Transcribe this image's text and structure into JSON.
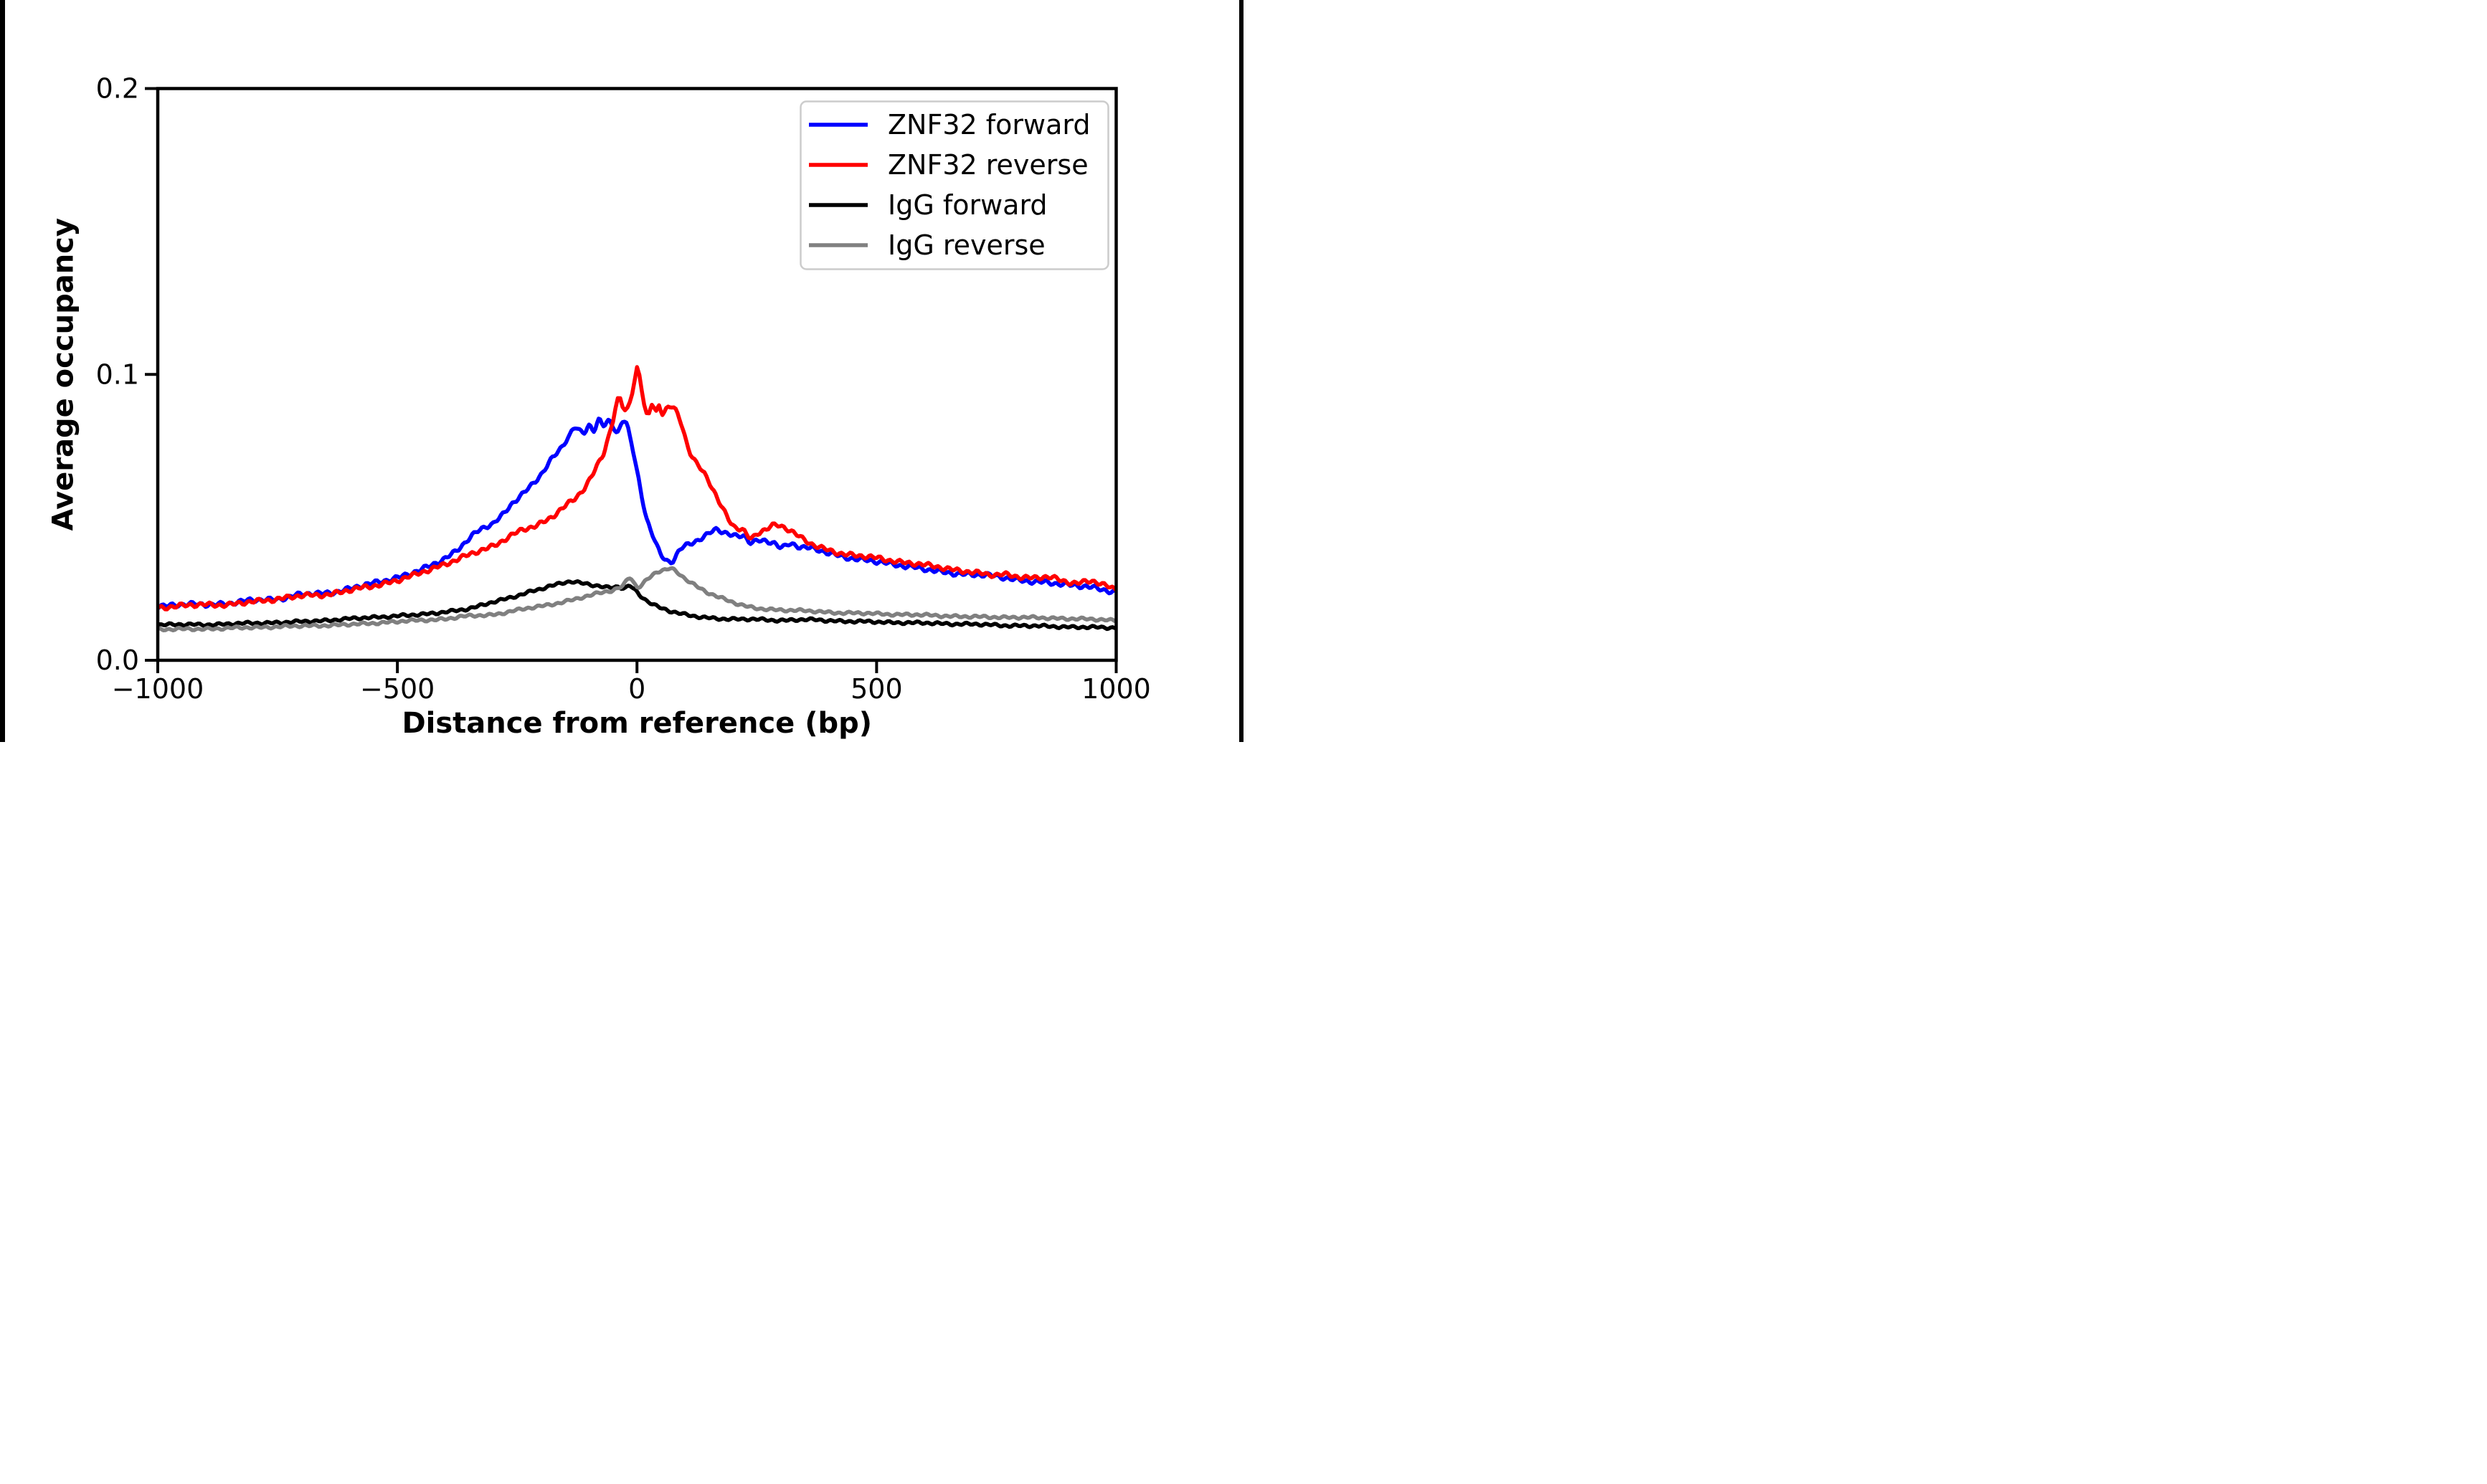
{
  "figure": {
    "background": "#ffffff",
    "edge_border_color": "#000000"
  },
  "chart_data": {
    "type": "line",
    "title": "",
    "xlabel": "Distance from reference (bp)",
    "ylabel": "Average occupancy",
    "xlim": [
      -1000,
      1000
    ],
    "ylim": [
      0,
      0.2
    ],
    "grid": false,
    "xticks": [
      {
        "value": -1000,
        "label": "−1000"
      },
      {
        "value": -500,
        "label": "−500"
      },
      {
        "value": 0,
        "label": "0"
      },
      {
        "value": 500,
        "label": "500"
      },
      {
        "value": 1000,
        "label": "1000"
      }
    ],
    "yticks": [
      {
        "value": 0.0,
        "label": "0.0"
      },
      {
        "value": 0.1,
        "label": "0.1"
      },
      {
        "value": 0.2,
        "label": "0.2"
      }
    ],
    "legend": {
      "position": "upper right",
      "frame_color": "#cccccc",
      "background": "#ffffff"
    },
    "series": [
      {
        "name": "ZNF32 forward",
        "color": "#0000ff",
        "x": [
          -1000,
          -950,
          -900,
          -850,
          -800,
          -750,
          -700,
          -650,
          -600,
          -550,
          -500,
          -460,
          -420,
          -380,
          -340,
          -300,
          -280,
          -260,
          -240,
          -220,
          -200,
          -180,
          -160,
          -140,
          -130,
          -120,
          -110,
          -100,
          -90,
          -80,
          -70,
          -60,
          -50,
          -40,
          -30,
          -22,
          -15,
          -8,
          0,
          10,
          20,
          33,
          45,
          55,
          62,
          75,
          90,
          107,
          127,
          145,
          165,
          180,
          195,
          210,
          222,
          237,
          252,
          270,
          287,
          302,
          320,
          340,
          360,
          380,
          400,
          430,
          460,
          500,
          540,
          580,
          620,
          660,
          700,
          740,
          780,
          820,
          860,
          900,
          940,
          970,
          1000
        ],
        "y": [
          0.019,
          0.0195,
          0.0195,
          0.02,
          0.021,
          0.0215,
          0.023,
          0.0235,
          0.025,
          0.027,
          0.029,
          0.031,
          0.034,
          0.038,
          0.044,
          0.048,
          0.051,
          0.055,
          0.058,
          0.061,
          0.065,
          0.07,
          0.074,
          0.079,
          0.0815,
          0.08,
          0.0795,
          0.082,
          0.0805,
          0.084,
          0.082,
          0.0835,
          0.082,
          0.08,
          0.084,
          0.083,
          0.078,
          0.073,
          0.066,
          0.0575,
          0.0495,
          0.0435,
          0.0385,
          0.036,
          0.035,
          0.035,
          0.0388,
          0.0406,
          0.0419,
          0.0435,
          0.0458,
          0.045,
          0.044,
          0.0434,
          0.0437,
          0.0413,
          0.0416,
          0.0414,
          0.0411,
          0.0395,
          0.0408,
          0.0398,
          0.0392,
          0.0383,
          0.0375,
          0.0363,
          0.0354,
          0.0344,
          0.0335,
          0.0325,
          0.0312,
          0.0305,
          0.03,
          0.0295,
          0.0286,
          0.0276,
          0.027,
          0.0265,
          0.0258,
          0.0246,
          0.0238
        ]
      },
      {
        "name": "ZNF32 reverse",
        "color": "#ff0000",
        "x": [
          -1000,
          -950,
          -900,
          -850,
          -800,
          -750,
          -700,
          -650,
          -600,
          -550,
          -500,
          -460,
          -420,
          -380,
          -340,
          -300,
          -270,
          -240,
          -210,
          -180,
          -150,
          -130,
          -110,
          -95,
          -80,
          -70,
          -60,
          -50,
          -45,
          -40,
          -35,
          -30,
          -25,
          -20,
          -15,
          -10,
          -5,
          0,
          5,
          10,
          15,
          20,
          25,
          31,
          40,
          46,
          53,
          65,
          77,
          92,
          107,
          120,
          132,
          145,
          160,
          175,
          187,
          200,
          210,
          220,
          237,
          252,
          270,
          287,
          302,
          315,
          330,
          345,
          365,
          385,
          400,
          430,
          460,
          500,
          540,
          580,
          620,
          660,
          700,
          740,
          770,
          800,
          830,
          860,
          890,
          920,
          950,
          975,
          1000
        ],
        "y": [
          0.0185,
          0.019,
          0.0195,
          0.0195,
          0.0205,
          0.0215,
          0.0225,
          0.023,
          0.0245,
          0.026,
          0.028,
          0.03,
          0.0325,
          0.035,
          0.0375,
          0.04,
          0.043,
          0.0455,
          0.047,
          0.05,
          0.054,
          0.0565,
          0.06,
          0.064,
          0.069,
          0.0725,
          0.078,
          0.084,
          0.088,
          0.091,
          0.0915,
          0.089,
          0.0875,
          0.088,
          0.0905,
          0.094,
          0.098,
          0.102,
          0.0995,
          0.0945,
          0.089,
          0.0855,
          0.086,
          0.0899,
          0.087,
          0.0895,
          0.0864,
          0.0884,
          0.0883,
          0.0834,
          0.0742,
          0.0696,
          0.0671,
          0.0642,
          0.0592,
          0.0542,
          0.0508,
          0.0475,
          0.0463,
          0.0456,
          0.0425,
          0.0444,
          0.0458,
          0.0473,
          0.047,
          0.046,
          0.0443,
          0.0425,
          0.0405,
          0.0392,
          0.0385,
          0.0373,
          0.0366,
          0.0357,
          0.0347,
          0.0338,
          0.0328,
          0.0318,
          0.0308,
          0.0298,
          0.0301,
          0.0292,
          0.0287,
          0.0291,
          0.0278,
          0.0271,
          0.0276,
          0.0262,
          0.0248
        ]
      },
      {
        "name": "IgG forward",
        "color": "#000000",
        "x": [
          -1000,
          -900,
          -800,
          -700,
          -600,
          -500,
          -450,
          -400,
          -350,
          -300,
          -250,
          -200,
          -170,
          -140,
          -120,
          -100,
          -80,
          -60,
          -40,
          -25,
          -15,
          -5,
          5,
          20,
          40,
          60,
          80,
          100,
          125,
          150,
          175,
          207,
          242,
          300,
          350,
          400,
          450,
          500,
          550,
          600,
          650,
          700,
          750,
          800,
          850,
          900,
          950,
          1000
        ],
        "y": [
          0.0125,
          0.0125,
          0.013,
          0.0135,
          0.0145,
          0.0155,
          0.016,
          0.017,
          0.018,
          0.0205,
          0.0225,
          0.025,
          0.0265,
          0.0275,
          0.027,
          0.0265,
          0.026,
          0.0255,
          0.0258,
          0.0252,
          0.026,
          0.0245,
          0.0228,
          0.0208,
          0.019,
          0.0178,
          0.0168,
          0.016,
          0.0152,
          0.0148,
          0.0146,
          0.0144,
          0.0143,
          0.014,
          0.0142,
          0.0139,
          0.0136,
          0.0134,
          0.0132,
          0.013,
          0.0128,
          0.0126,
          0.0123,
          0.0121,
          0.0119,
          0.0117,
          0.0115,
          0.0114
        ]
      },
      {
        "name": "IgG reverse",
        "color": "#808080",
        "x": [
          -1000,
          -900,
          -800,
          -700,
          -600,
          -500,
          -450,
          -400,
          -350,
          -300,
          -250,
          -200,
          -150,
          -100,
          -70,
          -50,
          -30,
          -15,
          -8,
          0,
          10,
          20,
          30,
          40,
          50,
          62,
          70,
          80,
          90,
          100,
          115,
          132,
          150,
          170,
          207,
          242,
          282,
          320,
          360,
          400,
          450,
          500,
          550,
          600,
          650,
          700,
          750,
          800,
          850,
          900,
          950,
          1000
        ],
        "y": [
          0.0108,
          0.011,
          0.0115,
          0.012,
          0.0125,
          0.0135,
          0.014,
          0.0145,
          0.0155,
          0.016,
          0.0175,
          0.019,
          0.0205,
          0.0225,
          0.024,
          0.0245,
          0.026,
          0.029,
          0.0275,
          0.0255,
          0.0262,
          0.028,
          0.0295,
          0.0308,
          0.0315,
          0.0318,
          0.0322,
          0.0312,
          0.03,
          0.0285,
          0.0268,
          0.025,
          0.0235,
          0.0222,
          0.0199,
          0.0183,
          0.0178,
          0.0175,
          0.0172,
          0.0168,
          0.0165,
          0.0163,
          0.016,
          0.0158,
          0.0155,
          0.0152,
          0.0151,
          0.015,
          0.0148,
          0.0146,
          0.0143,
          0.014
        ]
      }
    ]
  }
}
